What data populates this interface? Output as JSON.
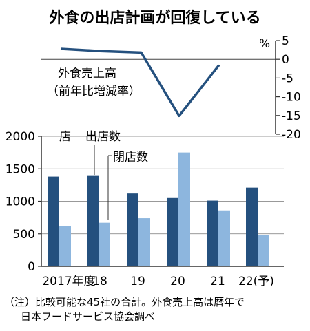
{
  "title": "外食の出店計画が回復している",
  "chart_data": [
    {
      "type": "line",
      "name": "外食売上高",
      "label": "外食売上高",
      "sublabel": "（前年比増減率）",
      "unit": "%",
      "ylim": [
        -20,
        5
      ],
      "yticks": [
        "5",
        "0",
        "-5",
        "-10",
        "-15",
        "-20"
      ],
      "x": [
        "2017",
        "18",
        "19",
        "20",
        "21"
      ],
      "values": [
        2.8,
        2.2,
        1.8,
        -15.1,
        -1.5
      ],
      "color": "#24507e"
    },
    {
      "type": "bar",
      "categories": [
        "2017年度",
        "18",
        "19",
        "20",
        "21",
        "22(予)"
      ],
      "unit": "店",
      "ylim": [
        0,
        2000
      ],
      "yticks": [
        "0",
        "500",
        "1000",
        "1500",
        "2000"
      ],
      "series": [
        {
          "name": "出店数",
          "values": [
            1380,
            1390,
            1120,
            1050,
            1010,
            1210
          ],
          "color": "#24507e"
        },
        {
          "name": "閉店数",
          "values": [
            620,
            670,
            740,
            1750,
            860,
            480
          ],
          "color": "#8db6de"
        }
      ]
    }
  ],
  "note_line1": "（注）比較可能な45社の合計。外食売上高は暦年で",
  "note_line2": "日本フードサービス協会調べ"
}
